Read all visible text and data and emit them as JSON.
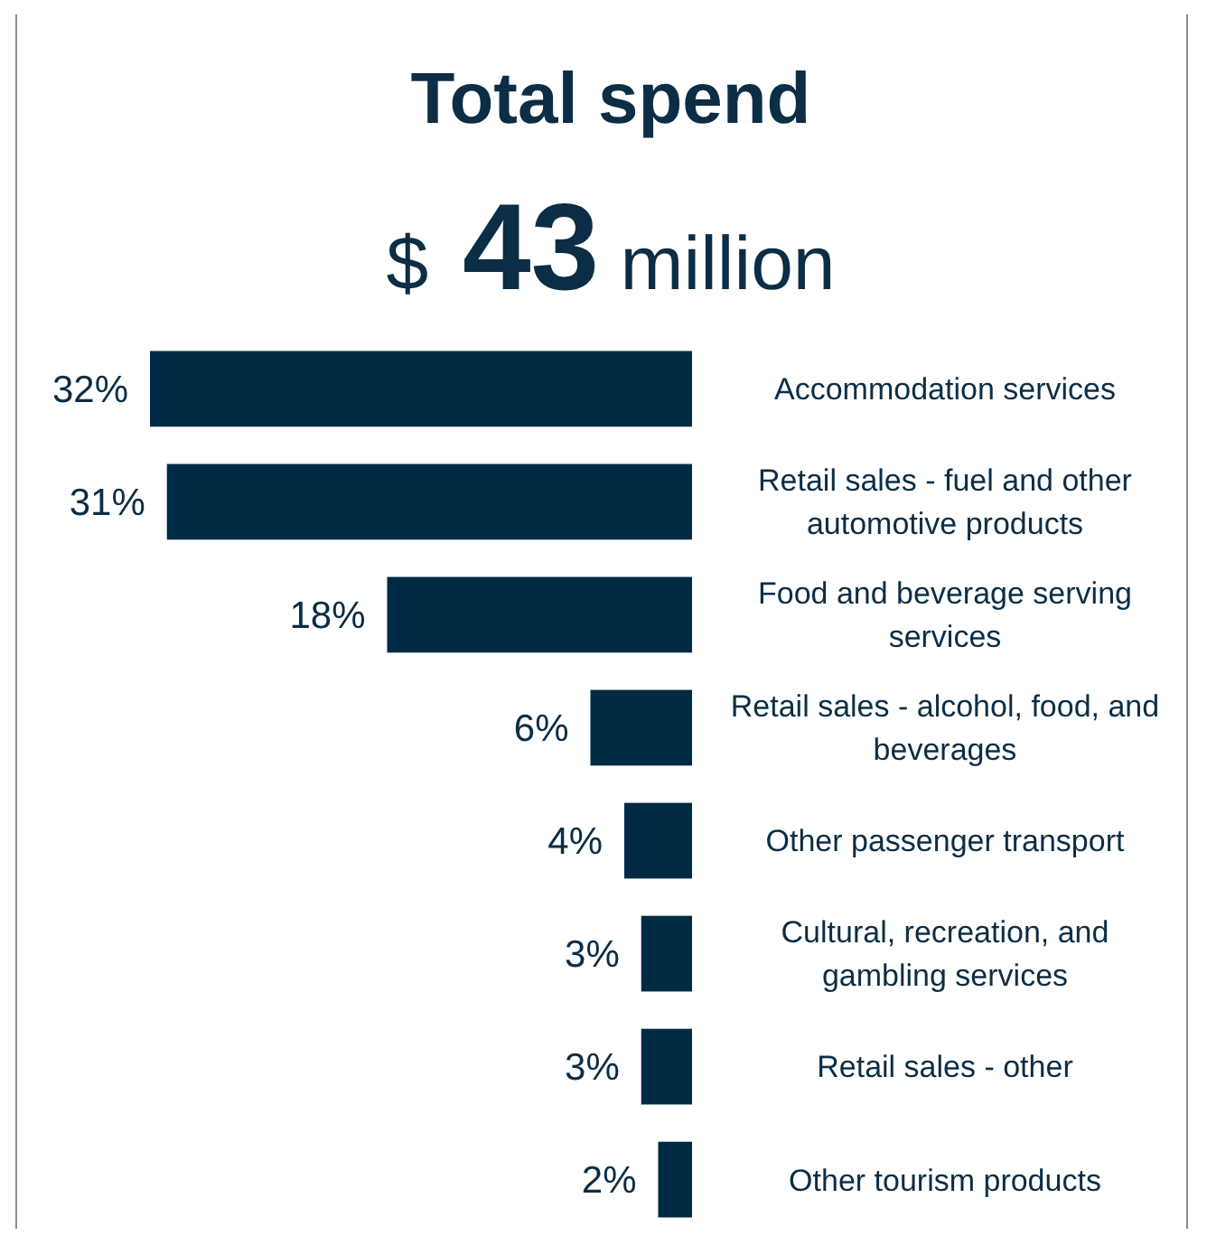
{
  "chart_data": {
    "type": "bar",
    "orientation": "horizontal",
    "title": "Total spend",
    "subtitle": "$ 43 million",
    "categories": [
      "Accommodation services",
      "Retail sales - fuel and other automotive products",
      "Food and beverage serving services",
      "Retail sales - alcohol, food, and beverages",
      "Other passenger transport",
      "Cultural, recreation, and gambling services",
      "Retail sales - other",
      "Other tourism products"
    ],
    "values": [
      32,
      31,
      18,
      6,
      4,
      3,
      3,
      2
    ],
    "color": "#002b45",
    "data_labels": true,
    "value_labels": [
      "32%",
      "31%",
      "18%",
      "6%",
      "4%",
      "3%",
      "3%",
      "2%"
    ]
  }
}
